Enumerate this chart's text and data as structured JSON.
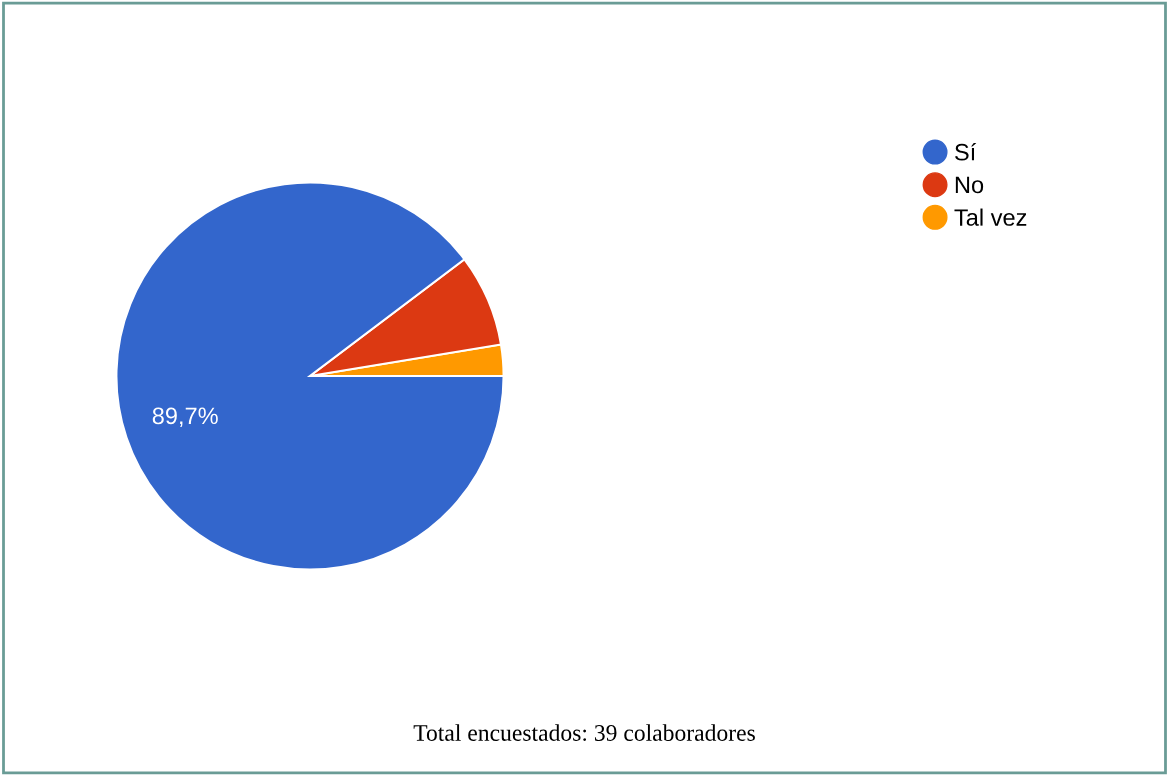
{
  "chart_data": {
    "type": "pie",
    "categories": [
      "Sí",
      "No",
      "Tal vez"
    ],
    "values": [
      89.7,
      7.7,
      2.6
    ],
    "colors": [
      "#3366cc",
      "#dc3912",
      "#ff9900"
    ],
    "value_labels": [
      "89,7%",
      null,
      null
    ],
    "legend": "top right",
    "annotations": [
      "Total encuestados: 39 colaboradores"
    ]
  }
}
